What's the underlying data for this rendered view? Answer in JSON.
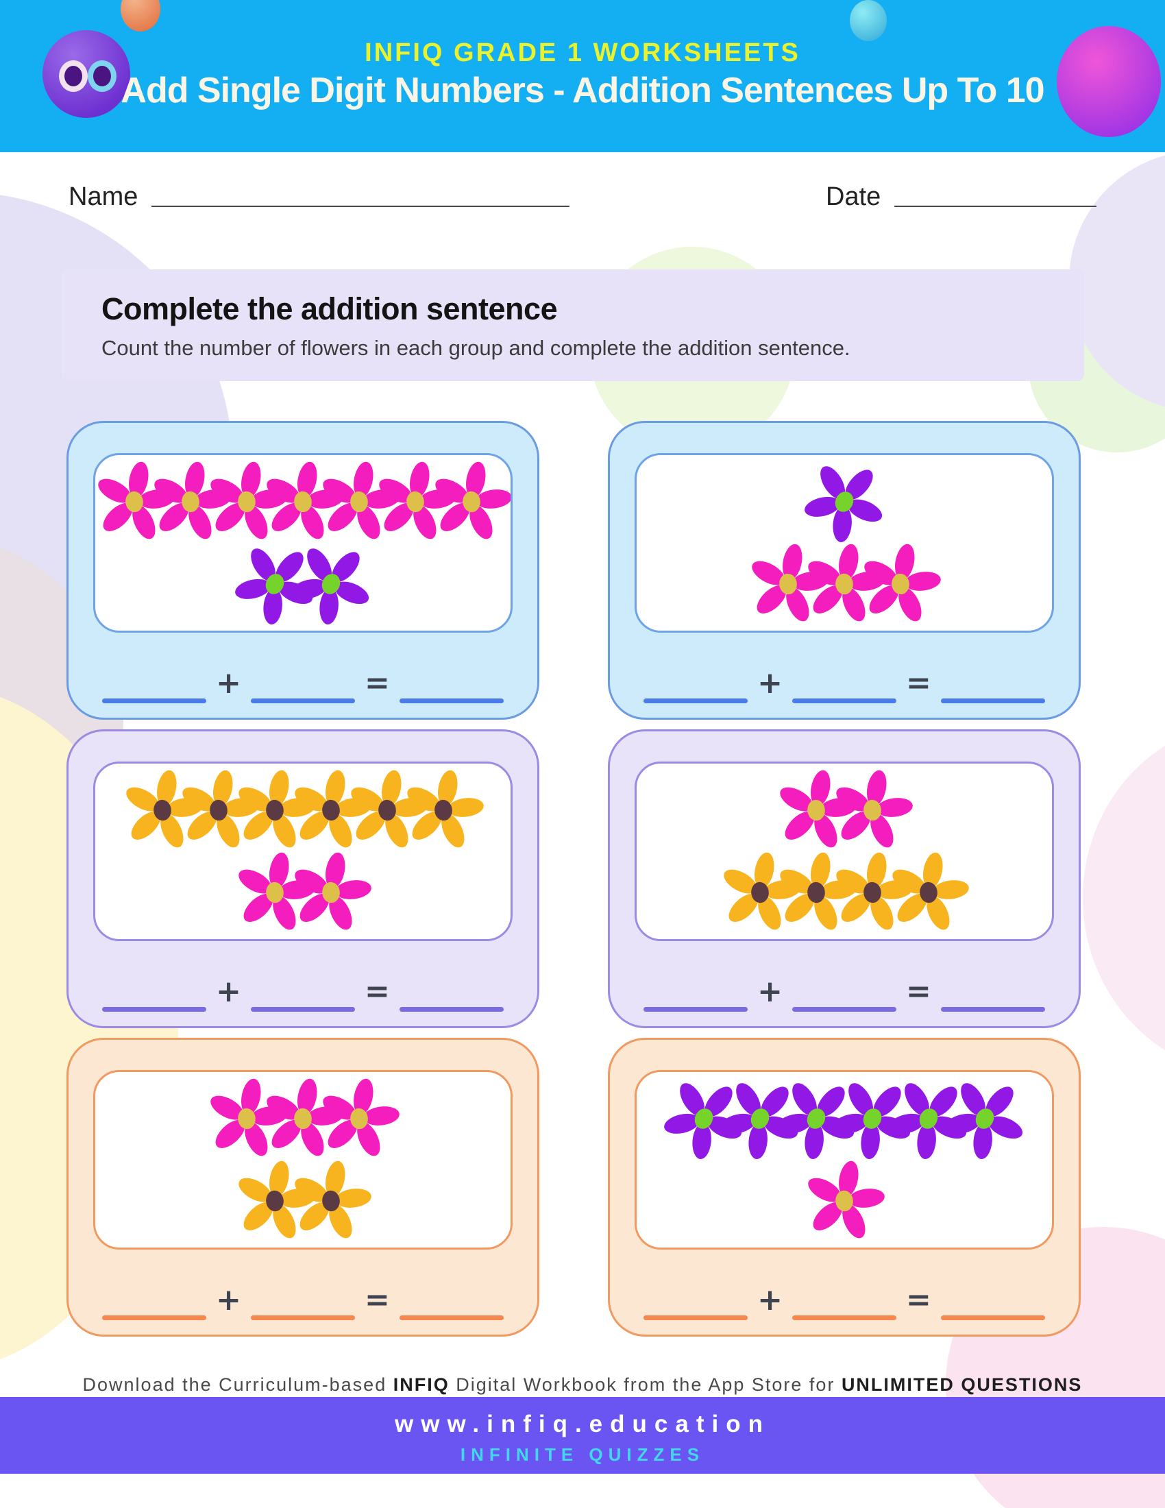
{
  "header": {
    "kicker": "INFIQ GRADE 1 WORKSHEETS",
    "title": "Add Single Digit Numbers - Addition Sentences Up To 10",
    "bg": "#14AEF2",
    "kicker_color": "#E9F22C",
    "title_color": "#FBF5E6"
  },
  "fields": {
    "name_label": "Name",
    "date_label": "Date"
  },
  "instructions": {
    "title": "Complete the addition sentence",
    "subtitle": "Count the number of flowers in each group and complete the addition sentence.",
    "bg": "#E7E2F8"
  },
  "equation": {
    "plus": "+",
    "equals": "="
  },
  "flower_colors": {
    "pink": {
      "petal": "#F41DBE",
      "center": "#DCC04A"
    },
    "purple": {
      "petal": "#9218E6",
      "center": "#76D32C"
    },
    "yellow": {
      "petal": "#F8B41E",
      "center": "#5C3A44"
    }
  },
  "themes": {
    "blue": {
      "bg": "#CDEBFB",
      "border": "#6B9BE0",
      "inner_border": "#6FA3E8",
      "line": "#4A7BE8"
    },
    "purple": {
      "bg": "#E9E3F9",
      "border": "#9C8BE4",
      "inner_border": "#9C8BE4",
      "line": "#7B6BE0"
    },
    "peach": {
      "bg": "#FCE7D3",
      "border": "#F09A62",
      "inner_border": "#F09A62",
      "line": "#F5874F"
    }
  },
  "cards": [
    {
      "theme": "blue",
      "groups": [
        {
          "flower": "pink",
          "count": 7
        },
        {
          "flower": "purple",
          "count": 2
        }
      ]
    },
    {
      "theme": "blue",
      "groups": [
        {
          "flower": "purple",
          "count": 1
        },
        {
          "flower": "pink",
          "count": 3
        }
      ]
    },
    {
      "theme": "purple",
      "groups": [
        {
          "flower": "yellow",
          "count": 6
        },
        {
          "flower": "pink",
          "count": 2
        }
      ]
    },
    {
      "theme": "purple",
      "groups": [
        {
          "flower": "pink",
          "count": 2
        },
        {
          "flower": "yellow",
          "count": 4
        }
      ]
    },
    {
      "theme": "peach",
      "groups": [
        {
          "flower": "pink",
          "count": 3
        },
        {
          "flower": "yellow",
          "count": 2
        }
      ]
    },
    {
      "theme": "peach",
      "groups": [
        {
          "flower": "purple",
          "count": 6
        },
        {
          "flower": "pink",
          "count": 1
        }
      ]
    }
  ],
  "footer": {
    "note_segments": [
      {
        "text": "Download the Curriculum-based ",
        "bold": false
      },
      {
        "text": "INFIQ",
        "bold": true
      },
      {
        "text": " Digital Workbook from the App Store for ",
        "bold": false
      },
      {
        "text": "UNLIMITED QUESTIONS",
        "bold": true
      }
    ],
    "website": "www.infiq.education",
    "tagline": "INFINITE QUIZZES",
    "bar_color": "#6A55F2",
    "tagline_color": "#41D8E8"
  }
}
